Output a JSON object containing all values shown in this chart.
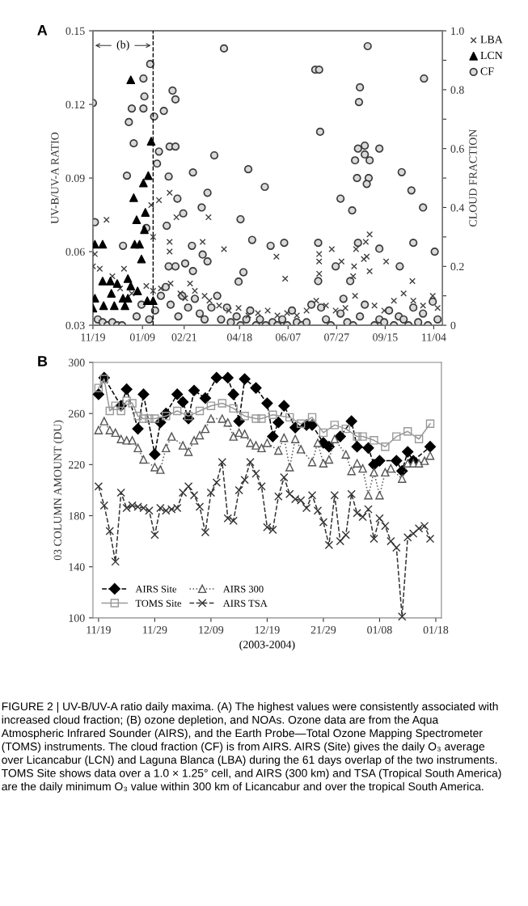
{
  "chart_data": [
    {
      "type": "scatter",
      "title": "A",
      "ylabel": "UV-B/UV-A RATIO",
      "y2label": "CLOUD FRACTION",
      "xlim": [
        "2003-11-19",
        "2004-11-13"
      ],
      "xticks": [
        {
          "value": "2003-11-19",
          "label": "11/19"
        },
        {
          "value": "2004-01-09",
          "label": "01/09"
        },
        {
          "value": "2004-02-21",
          "label": "02/21"
        },
        {
          "value": "2004-04-18",
          "label": "04/18"
        },
        {
          "value": "2004-06-07",
          "label": "06/07"
        },
        {
          "value": "2004-07-27",
          "label": "07/27"
        },
        {
          "value": "2004-09-15",
          "label": "09/15"
        },
        {
          "value": "2004-11-04",
          "label": "11/04"
        }
      ],
      "ylim": [
        0.03,
        0.15
      ],
      "yticks": [
        0.03,
        0.06,
        0.09,
        0.12,
        0.15
      ],
      "y2lim": [
        0,
        1
      ],
      "y2ticks": [
        0,
        {
          "value": 0.1,
          "label": null
        },
        0.2,
        {
          "value": 0.3,
          "label": null
        },
        0.4,
        {
          "value": 0.5,
          "label": null
        },
        0.6,
        {
          "value": 0.7,
          "label": null
        },
        0.8,
        {
          "value": 0.9,
          "label": null
        },
        {
          "value": 1,
          "label": "1.0"
        }
      ],
      "ref_lines": [
        {
          "axis": "x",
          "value": "2004-01-20",
          "label": "(b)",
          "line_style": "dashed",
          "color": "#000000"
        }
      ],
      "legend": "right",
      "grid": false,
      "series": [
        {
          "name": "LBA",
          "color": "#404040",
          "marker": "cross",
          "x": [
            "2003-12-03",
            "2004-02-06",
            "2004-01-26",
            "2004-02-13",
            "2004-03-17",
            "2004-01-18",
            "2004-02-06",
            "2004-02-06",
            "2004-03-11",
            "2004-04-02",
            "2004-01-20",
            "2003-11-21",
            "2003-11-19",
            "2003-11-26",
            "2003-12-21",
            "2004-08-27",
            "2004-08-30",
            "2004-08-26",
            "2004-08-16",
            "2004-08-24",
            "2004-08-30",
            "2004-08-14",
            "2004-09-16",
            "2004-10-13",
            "2004-07-22",
            "2004-07-09",
            "2004-07-09",
            "2004-07-09",
            "2004-08-01",
            "2004-05-26",
            "2004-06-04",
            "2004-08-13",
            "2003-12-09",
            "2003-12-17",
            "2003-12-29",
            "2004-01-13",
            "2004-01-20",
            "2004-01-28",
            "2004-02-07",
            "2004-02-17",
            "2004-02-22",
            "2004-02-27",
            "2004-03-03",
            "2004-03-13",
            "2004-03-18",
            "2004-03-28",
            "2004-04-07",
            "2004-04-17",
            "2004-04-27",
            "2004-05-07",
            "2004-05-17",
            "2004-05-27",
            "2004-06-06",
            "2004-06-16",
            "2004-06-26",
            "2004-07-06",
            "2004-07-16",
            "2004-07-26",
            "2004-08-05",
            "2004-08-15",
            "2004-09-04",
            "2004-09-14",
            "2004-09-24",
            "2004-10-04",
            "2004-10-14",
            "2004-10-24",
            "2004-11-03",
            "2004-11-08"
          ],
          "values": [
            0.073,
            0.084,
            0.081,
            0.074,
            0.074,
            0.079,
            0.064,
            0.06,
            0.064,
            0.061,
            0.066,
            0.059,
            0.054,
            0.053,
            0.053,
            0.058,
            0.067,
            0.064,
            0.061,
            0.057,
            0.052,
            0.054,
            0.056,
            0.048,
            0.061,
            0.059,
            0.056,
            0.051,
            0.056,
            0.058,
            0.049,
            0.05,
            0.05,
            0.045,
            0.043,
            0.046,
            0.044,
            0.045,
            0.047,
            0.043,
            0.041,
            0.047,
            0.044,
            0.042,
            0.04,
            0.038,
            0.036,
            0.037,
            0.034,
            0.035,
            0.036,
            0.034,
            0.035,
            0.034,
            0.036,
            0.04,
            0.038,
            0.036,
            0.037,
            0.042,
            0.038,
            0.036,
            0.04,
            0.043,
            0.04,
            0.038,
            0.042,
            0.037
          ]
        },
        {
          "name": "LCN",
          "color": "#000000",
          "marker": "triangle",
          "x": [
            "2003-11-21",
            "2003-11-29",
            "2003-12-28",
            "2004-01-18",
            "2004-01-15",
            "2004-01-10",
            "2003-12-31",
            "2004-01-12",
            "2004-01-03",
            "2004-01-11",
            "2004-01-01",
            "2004-01-06",
            "2004-01-08",
            "2003-11-29",
            "2003-12-07",
            "2003-12-14",
            "2003-12-25",
            "2003-12-28",
            "2004-01-04",
            "2003-11-21",
            "2003-12-08",
            "2003-12-20",
            "2003-12-25",
            "2003-11-19",
            "2003-11-30",
            "2003-12-11",
            "2003-12-22",
            "2004-01-14",
            "2004-01-20"
          ],
          "values": [
            0.063,
            0.063,
            0.13,
            0.105,
            0.091,
            0.088,
            0.082,
            0.076,
            0.073,
            0.069,
            0.063,
            0.063,
            0.057,
            0.048,
            0.048,
            0.047,
            0.049,
            0.046,
            0.044,
            0.041,
            0.043,
            0.041,
            0.041,
            0.037,
            0.038,
            0.038,
            0.038,
            0.04,
            0.04
          ]
        },
        {
          "name": "CF",
          "color": "#d9d9d9",
          "marker": "circle",
          "axis": "y2",
          "x": [
            "2003-11-19",
            "2004-01-17",
            "2004-01-10",
            "2004-01-11",
            "2003-12-29",
            "2004-01-10",
            "2004-01-21",
            "2004-01-31",
            "2004-02-09",
            "2004-02-12",
            "2003-12-26",
            "2003-12-31",
            "2004-02-06",
            "2004-02-12",
            "2004-01-26",
            "2004-01-24",
            "2004-03-23",
            "2004-04-02",
            "2004-04-27",
            "2004-05-14",
            "2003-12-24",
            "2004-02-05",
            "2004-03-01",
            "2004-03-16",
            "2004-02-14",
            "2004-03-10",
            "2004-02-20",
            "2004-02-03",
            "2004-04-19",
            "2003-11-21",
            "2004-05-01",
            "2004-05-20",
            "2003-12-20",
            "2004-02-29",
            "2004-03-16",
            "2004-03-11",
            "2004-02-22",
            "2004-03-01",
            "2004-01-13",
            "2004-02-05",
            "2004-02-12",
            "2004-04-17",
            "2004-04-22",
            "2004-08-28",
            "2004-07-05",
            "2004-07-09",
            "2004-10-25",
            "2004-08-20",
            "2004-08-19",
            "2004-07-10",
            "2004-08-18",
            "2004-08-25",
            "2004-09-09",
            "2004-08-25",
            "2004-08-15",
            "2004-08-30",
            "2004-10-02",
            "2004-08-17",
            "2004-08-29",
            "2004-08-27",
            "2004-10-12",
            "2004-07-31",
            "2004-10-24",
            "2004-08-12",
            "2004-06-03",
            "2004-07-08",
            "2004-08-18",
            "2004-09-09",
            "2004-10-14",
            "2004-11-05",
            "2004-07-26",
            "2004-09-30",
            "2004-07-08",
            "2004-08-10",
            "2003-11-24",
            "2003-11-29",
            "2003-12-04",
            "2003-12-09",
            "2003-12-14",
            "2003-12-19",
            "2004-01-03",
            "2004-01-08",
            "2004-01-16",
            "2004-01-22",
            "2004-01-28",
            "2004-02-02",
            "2004-02-07",
            "2004-02-15",
            "2004-02-19",
            "2004-02-25",
            "2004-03-03",
            "2004-03-08",
            "2004-03-13",
            "2004-03-20",
            "2004-03-26",
            "2004-03-30",
            "2004-04-05",
            "2004-04-09",
            "2004-04-15",
            "2004-04-19",
            "2004-04-25",
            "2004-04-29",
            "2004-05-05",
            "2004-05-09",
            "2004-05-15",
            "2004-05-22",
            "2004-05-27",
            "2004-06-01",
            "2004-06-06",
            "2004-06-11",
            "2004-06-16",
            "2004-06-21",
            "2004-06-26",
            "2004-07-01",
            "2004-07-11",
            "2004-07-16",
            "2004-07-21",
            "2004-07-31",
            "2004-08-03",
            "2004-08-07",
            "2004-08-13",
            "2004-08-20",
            "2004-08-25",
            "2004-09-04",
            "2004-09-09",
            "2004-09-14",
            "2004-09-19",
            "2004-09-24",
            "2004-09-29",
            "2004-10-04",
            "2004-10-09",
            "2004-10-14",
            "2004-10-19",
            "2004-10-24",
            "2004-10-29",
            "2004-11-03",
            "2004-11-08"
          ],
          "values": [
            0.755,
            0.887,
            0.838,
            0.777,
            0.736,
            0.736,
            0.709,
            0.728,
            0.797,
            0.767,
            0.69,
            0.618,
            0.607,
            0.607,
            0.59,
            0.549,
            0.577,
            0.94,
            0.53,
            0.47,
            0.508,
            0.505,
            0.519,
            0.45,
            0.43,
            0.4,
            0.38,
            0.338,
            0.36,
            0.35,
            0.29,
            0.27,
            0.27,
            0.27,
            0.217,
            0.24,
            0.21,
            0.184,
            0.33,
            0.2,
            0.2,
            0.148,
            0.18,
            0.948,
            0.868,
            0.868,
            0.838,
            0.808,
            0.758,
            0.657,
            0.6,
            0.61,
            0.6,
            0.58,
            0.56,
            0.56,
            0.52,
            0.5,
            0.5,
            0.48,
            0.458,
            0.43,
            0.4,
            0.39,
            0.28,
            0.28,
            0.28,
            0.26,
            0.28,
            0.25,
            0.2,
            0.2,
            0.15,
            0.15,
            0.02,
            0.01,
            0,
            0.01,
            0,
            0,
            0.03,
            0.07,
            0.02,
            0.05,
            0.1,
            0.13,
            0.07,
            0.03,
            0.1,
            0.06,
            0.09,
            0.04,
            0.02,
            0.06,
            0.1,
            0.02,
            0.06,
            0.01,
            0.03,
            0,
            0.02,
            0.05,
            0,
            0.02,
            0,
            0.01,
            0,
            0.02,
            0,
            0.05,
            0.01,
            0,
            0.01,
            0.07,
            0.06,
            0.02,
            0,
            0.04,
            0.09,
            0.01,
            0,
            0.03,
            0.07,
            0,
            0.02,
            0.01,
            0.05,
            0,
            0.03,
            0.02,
            0,
            0.06,
            0.01,
            0.04,
            0,
            0.08,
            0.02
          ]
        }
      ]
    },
    {
      "type": "line",
      "title": "B",
      "ylabel": "03 COLUMN AMOUNT (DU)",
      "xlabel": "(2003-2004)",
      "xlim": [
        "2003-11-18",
        "2004-01-19"
      ],
      "xticks": [
        {
          "value": "2003-11-19",
          "label": "11/19"
        },
        {
          "value": "2003-11-29",
          "label": "11/29"
        },
        {
          "value": "2003-12-09",
          "label": "12/09"
        },
        {
          "value": "2003-12-19",
          "label": "12/19"
        },
        {
          "value": "2003-12-29",
          "label": "21/29"
        },
        {
          "value": "2004-01-08",
          "label": "01/08"
        },
        {
          "value": "2004-01-18",
          "label": "01/18"
        }
      ],
      "ylim": [
        100,
        300
      ],
      "yticks": [
        100,
        140,
        180,
        220,
        260,
        300
      ],
      "legend": "bottom left",
      "grid": false,
      "annotations": [
        "FIGURE 2 | UV-B/UV-A ratio daily maxima. (A) The highest values were consistently associated with increased cloud fraction; (B) ozone depletion, and NOAs. Ozone data are from the Aqua Atmospheric Infrared Sounder (AIRS), and the Earth Probe—Total Ozone Mapping Spectrometer (TOMS) instruments. The cloud fraction (CF) is from AIRS. AIRS (Site) gives the daily O₃ average over Licancabur (LCN) and Laguna Blanca (LBA) during the 61 days overlap of the two instruments. TOMS Site shows data over a 1.0 × 1.25° cell, and AIRS (300 km) and TSA (Tropical South America) are the daily minimum O₃ value within 300 km of Licancabur and over the tropical South America."
      ],
      "series": [
        {
          "name": "AIRS Site",
          "color": "#000000",
          "marker": "diamond",
          "line_style": "dashed",
          "x": [
            "2003-11-19",
            "2003-11-20",
            "2003-11-23",
            "2003-11-24",
            "2003-11-26",
            "2003-11-27",
            "2003-11-29",
            "2003-11-30",
            "2003-12-01",
            "2003-12-03",
            "2003-12-04",
            "2003-12-05",
            "2003-12-06",
            "2003-12-08",
            "2003-12-10",
            "2003-12-12",
            "2003-12-13",
            "2003-12-14",
            "2003-12-15",
            "2003-12-17",
            "2003-12-19",
            "2003-12-20",
            "2003-12-21",
            "2003-12-22",
            "2003-12-24",
            "2003-12-26",
            "2003-12-27",
            "2003-12-29",
            "2003-12-30",
            "2004-01-01",
            "2004-01-03",
            "2004-01-04",
            "2004-01-06",
            "2004-01-07",
            "2004-01-08",
            "2004-01-11",
            "2004-01-12",
            "2004-01-13",
            "2004-01-14",
            "2004-01-17"
          ],
          "values": [
            275,
            288,
            266,
            279,
            248,
            275,
            228,
            253,
            260,
            275,
            269,
            256,
            278,
            272,
            288,
            288,
            275,
            254,
            287,
            280,
            268,
            242,
            253,
            266,
            249,
            251,
            251,
            237,
            234,
            242,
            254,
            234,
            233,
            220,
            223,
            223,
            215,
            230,
            223,
            234
          ]
        },
        {
          "name": "TOMS Site",
          "color": "#999999",
          "marker": "square",
          "line_style": "solid",
          "x": [
            "2003-11-19",
            "2003-11-20",
            "2003-11-21",
            "2003-11-22",
            "2003-11-23",
            "2003-11-24",
            "2003-11-25",
            "2003-11-26",
            "2003-11-27",
            "2003-11-28",
            "2003-11-29",
            "2003-12-01",
            "2003-12-03",
            "2003-12-05",
            "2003-12-07",
            "2003-12-09",
            "2003-12-11",
            "2003-12-13",
            "2003-12-15",
            "2003-12-17",
            "2003-12-18",
            "2003-12-20",
            "2003-12-23",
            "2003-12-25",
            "2003-12-27",
            "2003-12-29",
            "2003-12-31",
            "2004-01-02",
            "2004-01-04",
            "2004-01-05",
            "2004-01-07",
            "2004-01-09",
            "2004-01-11",
            "2004-01-13",
            "2004-01-15",
            "2004-01-17"
          ],
          "values": [
            280,
            287,
            262,
            266,
            262,
            270,
            268,
            258,
            256,
            256,
            256,
            258,
            262,
            258,
            262,
            266,
            268,
            264,
            258,
            256,
            256,
            259,
            257,
            252,
            257,
            245,
            251,
            248,
            242,
            242,
            239,
            234,
            242,
            246,
            240,
            252
          ]
        },
        {
          "name": "AIRS 300",
          "color": "#555555",
          "marker": "triangle",
          "line_style": "dotted",
          "x": [
            "2003-11-19",
            "2003-11-20",
            "2003-11-21",
            "2003-11-22",
            "2003-11-23",
            "2003-11-24",
            "2003-11-25",
            "2003-11-26",
            "2003-11-27",
            "2003-11-29",
            "2003-11-30",
            "2003-12-01",
            "2003-12-02",
            "2003-12-04",
            "2003-12-05",
            "2003-12-06",
            "2003-12-07",
            "2003-12-08",
            "2003-12-09",
            "2003-12-11",
            "2003-12-12",
            "2003-12-13",
            "2003-12-14",
            "2003-12-15",
            "2003-12-16",
            "2003-12-17",
            "2003-12-18",
            "2003-12-19",
            "2003-12-21",
            "2003-12-22",
            "2003-12-23",
            "2003-12-24",
            "2003-12-25",
            "2003-12-27",
            "2003-12-28",
            "2003-12-29",
            "2003-12-30",
            "2003-12-31",
            "2004-01-02",
            "2004-01-03",
            "2004-01-04",
            "2004-01-05",
            "2004-01-06",
            "2004-01-07",
            "2004-01-08",
            "2004-01-09",
            "2004-01-10",
            "2004-01-12",
            "2004-01-13",
            "2004-01-14",
            "2004-01-15",
            "2004-01-16",
            "2004-01-17"
          ],
          "values": [
            247,
            254,
            247,
            245,
            240,
            239,
            239,
            233,
            224,
            218,
            216,
            233,
            242,
            235,
            230,
            239,
            243,
            248,
            256,
            256,
            253,
            242,
            245,
            244,
            237,
            235,
            233,
            237,
            231,
            241,
            218,
            240,
            232,
            222,
            237,
            221,
            224,
            240,
            228,
            215,
            221,
            217,
            196,
            214,
            196,
            214,
            217,
            209,
            221,
            221,
            221,
            223,
            227
          ]
        },
        {
          "name": "AIRS TSA",
          "color": "#333333",
          "marker": "cross",
          "line_style": "dashed",
          "x": [
            "2003-11-19",
            "2003-11-20",
            "2003-11-21",
            "2003-11-22",
            "2003-11-23",
            "2003-11-24",
            "2003-11-25",
            "2003-11-26",
            "2003-11-27",
            "2003-11-28",
            "2003-11-29",
            "2003-11-30",
            "2003-12-01",
            "2003-12-02",
            "2003-12-03",
            "2003-12-04",
            "2003-12-05",
            "2003-12-06",
            "2003-12-07",
            "2003-12-08",
            "2003-12-09",
            "2003-12-10",
            "2003-12-11",
            "2003-12-12",
            "2003-12-13",
            "2003-12-14",
            "2003-12-15",
            "2003-12-16",
            "2003-12-17",
            "2003-12-18",
            "2003-12-19",
            "2003-12-20",
            "2003-12-21",
            "2003-12-22",
            "2003-12-23",
            "2003-12-24",
            "2003-12-25",
            "2003-12-26",
            "2003-12-27",
            "2003-12-28",
            "2003-12-29",
            "2003-12-30",
            "2003-12-31",
            "2004-01-01",
            "2004-01-02",
            "2004-01-03",
            "2004-01-04",
            "2004-01-05",
            "2004-01-06",
            "2004-01-07",
            "2004-01-08",
            "2004-01-09",
            "2004-01-10",
            "2004-01-11",
            "2004-01-12",
            "2004-01-13",
            "2004-01-14",
            "2004-01-15",
            "2004-01-16",
            "2004-01-17"
          ],
          "values": [
            203,
            188,
            168,
            144,
            198,
            186,
            188,
            187,
            186,
            184,
            165,
            186,
            184,
            185,
            186,
            198,
            203,
            196,
            187,
            167,
            198,
            206,
            222,
            178,
            176,
            200,
            208,
            222,
            213,
            203,
            171,
            169,
            195,
            210,
            197,
            193,
            192,
            186,
            196,
            184,
            175,
            157,
            196,
            160,
            165,
            197,
            182,
            179,
            185,
            162,
            178,
            172,
            160,
            155,
            101,
            163,
            166,
            170,
            172,
            162
          ]
        }
      ]
    }
  ]
}
